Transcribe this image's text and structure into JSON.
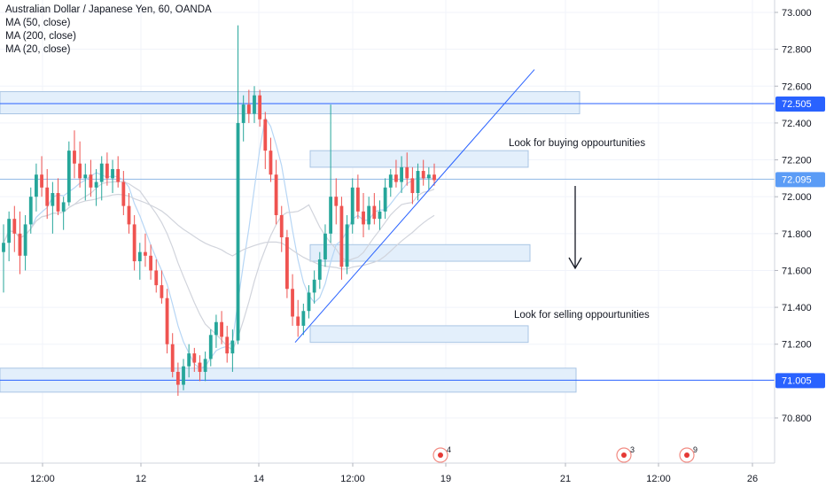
{
  "legend": {
    "title": "Australian Dollar / Japanese Yen, 60, OANDA",
    "ma_lines": [
      "MA (50, close)",
      "MA (200, close)",
      "MA (20, close)"
    ]
  },
  "colors": {
    "up": "#26a69a",
    "down": "#ef5350",
    "zone_fill": "#e3effb",
    "zone_border": "#aac5e4",
    "line_blue": "#2962ff",
    "ma_light": "#b7d6f5",
    "ma_grey": "#d1d4dc"
  },
  "chart_data": {
    "type": "candlestick",
    "title": "Australian Dollar / Japanese Yen, 60, OANDA",
    "y_axis": {
      "ticks": [
        "73.000",
        "72.800",
        "72.600",
        "72.400",
        "72.200",
        "72.000",
        "71.800",
        "71.600",
        "71.400",
        "71.200",
        "70.800"
      ],
      "ylim": [
        70.7,
        73.05
      ]
    },
    "x_axis": {
      "ticks": [
        "12:00",
        "12",
        "14",
        "12:00",
        "19",
        "21",
        "12:00",
        "26"
      ]
    },
    "price_labels": [
      "72.505",
      "72.095",
      "71.005"
    ],
    "horizontal_lines": [
      72.505,
      72.095,
      71.005
    ],
    "annotations": [
      "Look for buying oppourtunities",
      "Look for selling oppourtunities"
    ],
    "zones": [
      {
        "top": 72.57,
        "bottom": 72.45
      },
      {
        "top": 72.25,
        "bottom": 72.16
      },
      {
        "top": 71.74,
        "bottom": 71.65
      },
      {
        "top": 71.3,
        "bottom": 71.21
      },
      {
        "top": 71.07,
        "bottom": 70.94
      }
    ],
    "trendline": {
      "from": 71.21,
      "to": 72.69
    },
    "events": [
      {
        "label": "4"
      },
      {
        "label": "3"
      },
      {
        "label": "9"
      }
    ],
    "candles": [
      [
        71.7,
        71.85,
        71.48,
        71.75
      ],
      [
        71.75,
        71.92,
        71.65,
        71.88
      ],
      [
        71.88,
        71.95,
        71.7,
        71.8
      ],
      [
        71.8,
        71.92,
        71.58,
        71.68
      ],
      [
        71.68,
        71.9,
        71.6,
        71.85
      ],
      [
        71.85,
        72.05,
        71.8,
        72.0
      ],
      [
        72.0,
        72.18,
        71.92,
        72.12
      ],
      [
        72.12,
        72.22,
        72.0,
        72.05
      ],
      [
        72.05,
        72.15,
        71.88,
        71.95
      ],
      [
        71.95,
        72.08,
        71.8,
        72.02
      ],
      [
        72.02,
        72.1,
        71.9,
        71.92
      ],
      [
        71.92,
        72.0,
        71.82,
        71.97
      ],
      [
        71.97,
        72.3,
        71.95,
        72.25
      ],
      [
        72.25,
        72.36,
        72.1,
        72.18
      ],
      [
        72.18,
        72.3,
        72.05,
        72.1
      ],
      [
        72.1,
        72.18,
        71.98,
        72.12
      ],
      [
        72.12,
        72.2,
        72.0,
        72.05
      ],
      [
        72.05,
        72.15,
        71.95,
        72.08
      ],
      [
        72.08,
        72.22,
        71.98,
        72.18
      ],
      [
        72.18,
        72.24,
        72.06,
        72.1
      ],
      [
        72.1,
        72.2,
        72.02,
        72.15
      ],
      [
        72.15,
        72.22,
        72.05,
        72.08
      ],
      [
        72.08,
        72.14,
        71.9,
        71.95
      ],
      [
        71.95,
        72.02,
        71.8,
        71.85
      ],
      [
        71.85,
        71.9,
        71.6,
        71.65
      ],
      [
        71.65,
        71.75,
        71.55,
        71.7
      ],
      [
        71.7,
        71.8,
        71.62,
        71.68
      ],
      [
        71.68,
        71.74,
        71.55,
        71.6
      ],
      [
        71.6,
        71.66,
        71.48,
        71.52
      ],
      [
        71.52,
        71.6,
        71.42,
        71.45
      ],
      [
        71.45,
        71.5,
        71.15,
        71.2
      ],
      [
        71.2,
        71.26,
        71.02,
        71.05
      ],
      [
        71.05,
        71.1,
        70.92,
        70.98
      ],
      [
        70.98,
        71.12,
        70.95,
        71.08
      ],
      [
        71.08,
        71.2,
        71.02,
        71.15
      ],
      [
        71.15,
        71.18,
        71.05,
        71.1
      ],
      [
        71.1,
        71.14,
        71.0,
        71.05
      ],
      [
        71.05,
        71.16,
        71.0,
        71.12
      ],
      [
        71.12,
        71.28,
        71.08,
        71.25
      ],
      [
        71.25,
        71.36,
        71.18,
        71.32
      ],
      [
        71.32,
        71.38,
        71.2,
        71.24
      ],
      [
        71.24,
        71.3,
        71.1,
        71.15
      ],
      [
        71.15,
        71.28,
        71.05,
        71.22
      ],
      [
        71.22,
        72.93,
        71.2,
        72.4
      ],
      [
        72.4,
        72.55,
        72.3,
        72.5
      ],
      [
        72.5,
        72.58,
        72.4,
        72.45
      ],
      [
        72.45,
        72.6,
        72.4,
        72.55
      ],
      [
        72.55,
        72.58,
        72.38,
        72.42
      ],
      [
        72.42,
        72.46,
        72.15,
        72.25
      ],
      [
        72.25,
        72.32,
        72.08,
        72.12
      ],
      [
        72.12,
        72.2,
        71.85,
        71.9
      ],
      [
        71.9,
        71.95,
        71.7,
        71.78
      ],
      [
        71.78,
        71.82,
        71.45,
        71.5
      ],
      [
        71.5,
        71.58,
        71.3,
        71.35
      ],
      [
        71.35,
        71.44,
        71.24,
        71.3
      ],
      [
        71.3,
        71.42,
        71.25,
        71.38
      ],
      [
        71.38,
        71.52,
        71.34,
        71.48
      ],
      [
        71.48,
        71.6,
        71.42,
        71.55
      ],
      [
        71.55,
        71.7,
        71.5,
        71.66
      ],
      [
        71.66,
        71.85,
        71.62,
        71.8
      ],
      [
        71.8,
        72.5,
        71.75,
        72.0
      ],
      [
        72.0,
        72.1,
        71.85,
        71.95
      ],
      [
        71.95,
        72.0,
        71.55,
        71.62
      ],
      [
        71.62,
        71.9,
        71.58,
        71.85
      ],
      [
        71.85,
        72.1,
        71.8,
        72.05
      ],
      [
        72.05,
        72.12,
        71.88,
        71.92
      ],
      [
        71.92,
        72.02,
        71.78,
        71.85
      ],
      [
        71.85,
        72.0,
        71.82,
        71.95
      ],
      [
        71.95,
        72.02,
        71.85,
        71.88
      ],
      [
        71.88,
        71.98,
        71.82,
        71.92
      ],
      [
        71.92,
        72.1,
        71.88,
        72.05
      ],
      [
        72.05,
        72.15,
        72.0,
        72.12
      ],
      [
        72.12,
        72.2,
        72.05,
        72.08
      ],
      [
        72.08,
        72.22,
        72.02,
        72.16
      ],
      [
        72.16,
        72.24,
        72.06,
        72.1
      ],
      [
        72.1,
        72.16,
        71.96,
        72.02
      ],
      [
        72.02,
        72.18,
        71.98,
        72.14
      ],
      [
        72.14,
        72.2,
        72.06,
        72.1
      ],
      [
        72.1,
        72.16,
        72.04,
        72.12
      ],
      [
        72.12,
        72.18,
        72.06,
        72.09
      ]
    ]
  }
}
